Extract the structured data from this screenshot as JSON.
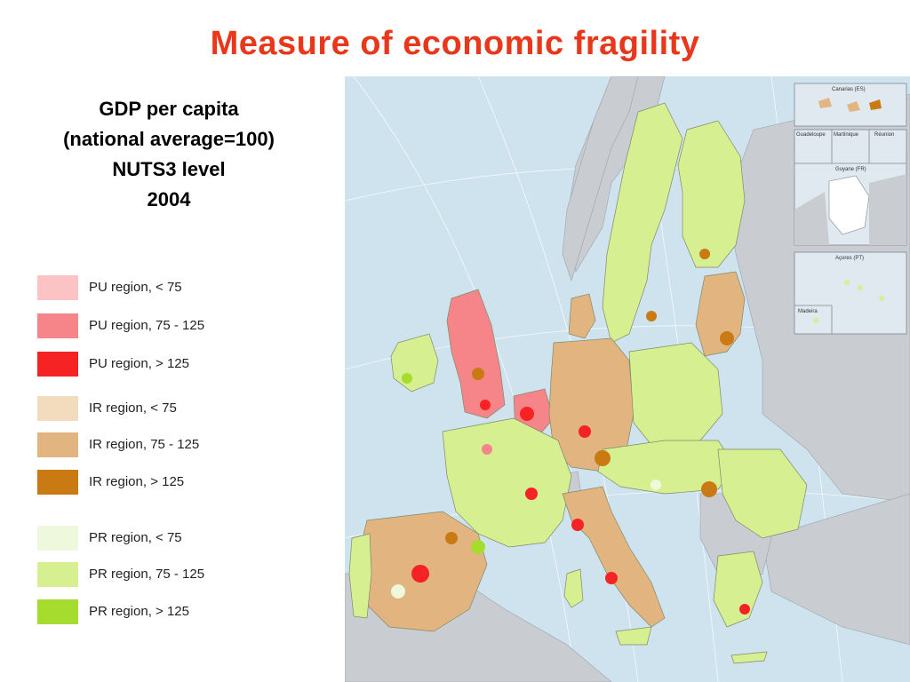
{
  "title": "Measure of economic fragility",
  "subtitle": {
    "line1": "GDP per capita",
    "line2": "(national average=100)",
    "line3": "NUTS3 level",
    "line4": "2004"
  },
  "legend": [
    {
      "label": "PU region, < 75",
      "color": "#fbc3c3"
    },
    {
      "label": "PU region, 75 - 125",
      "color": "#f6858a"
    },
    {
      "label": "PU region, > 125",
      "color": "#f52323"
    },
    {
      "label": "IR region, < 75",
      "color": "#f3dcbe"
    },
    {
      "label": "IR region, 75 - 125",
      "color": "#e2b480"
    },
    {
      "label": "IR region, > 125",
      "color": "#c97a13"
    },
    {
      "label": "PR region, < 75",
      "color": "#eef8dc"
    },
    {
      "label": "PR region, 75 - 125",
      "color": "#d6ef91"
    },
    {
      "label": "PR region, > 125",
      "color": "#a6dc2e"
    }
  ],
  "insets": {
    "canarias": "Canarias (ES)",
    "guadeloupe": "Guadeloupe",
    "martinique": "Martinique",
    "reunion": "Réunion",
    "guyane": "Guyane (FR)",
    "acores": "Açores (PT)",
    "madeira": "Madeira"
  },
  "colors": {
    "sea": "#cfe3ee",
    "non_eu_land": "#c9cdd2",
    "title": "#e8371a"
  }
}
